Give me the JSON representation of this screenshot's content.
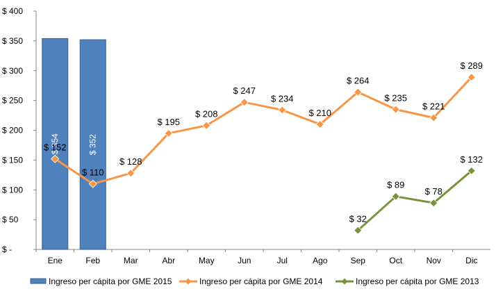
{
  "chart_data": {
    "type": "bar",
    "categories": [
      "Ene",
      "Feb",
      "Mar",
      "Abr",
      "May",
      "Jun",
      "Jul",
      "Ago",
      "Sep",
      "Oct",
      "Nov",
      "Dic"
    ],
    "y_tick_labels": [
      "$ -",
      "$ 50",
      "$ 100",
      "$ 150",
      "$ 200",
      "$ 250",
      "$ 300",
      "$ 350",
      "$ 400"
    ],
    "y_ticks": [
      0,
      50,
      100,
      150,
      200,
      250,
      300,
      350,
      400
    ],
    "ylim": [
      0,
      400
    ],
    "grid": false,
    "legend_position": "bottom",
    "series": [
      {
        "name": "Ingreso per cápita por GME 2015",
        "kind": "bar",
        "color": "#4F81BD",
        "values": [
          354,
          352,
          null,
          null,
          null,
          null,
          null,
          null,
          null,
          null,
          null,
          null
        ],
        "labels": [
          "$ 354",
          "$ 352",
          null,
          null,
          null,
          null,
          null,
          null,
          null,
          null,
          null,
          null
        ]
      },
      {
        "name": "Ingreso per cápita por GME 2014",
        "kind": "line",
        "color": "#F79646",
        "values": [
          152,
          110,
          128,
          195,
          208,
          247,
          234,
          210,
          264,
          235,
          221,
          289
        ],
        "labels": [
          "$ 152",
          "$ 110",
          "$ 128",
          "$ 195",
          "$ 208",
          "$ 247",
          "$ 234",
          "$ 210",
          "$ 264",
          "$ 235",
          "$ 221",
          "$ 289"
        ]
      },
      {
        "name": "Ingreso per cápita por GME 2013",
        "kind": "line",
        "color": "#77933C",
        "values": [
          null,
          null,
          null,
          null,
          null,
          null,
          null,
          null,
          32,
          89,
          78,
          132
        ],
        "labels": [
          null,
          null,
          null,
          null,
          null,
          null,
          null,
          null,
          "$ 32",
          "$ 89",
          "$ 78",
          "$ 132"
        ]
      }
    ]
  }
}
